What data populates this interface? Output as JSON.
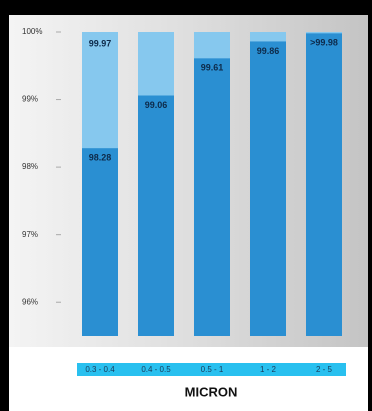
{
  "chart_data": {
    "type": "bar",
    "categories": [
      "0.3 - 0.4",
      "0.4 - 0.5",
      "0.5 - 1",
      "1 - 2",
      "2 - 5"
    ],
    "series": [
      {
        "color": "#2a8fd2",
        "values": [
          98.28,
          99.06,
          99.61,
          99.86,
          99.98
        ],
        "value_labels": [
          "98.28",
          "99.06",
          "99.61",
          "99.86",
          ">99.98"
        ]
      },
      {
        "color": "#86c8ee",
        "values": [
          99.97,
          null,
          null,
          null,
          null
        ]
      }
    ],
    "x_label": "MICRON",
    "ylim": [
      95.5,
      100
    ],
    "yticks": [
      {
        "value": 96,
        "label": "96%"
      },
      {
        "value": 97,
        "label": "97%"
      },
      {
        "value": 98,
        "label": "98%"
      },
      {
        "value": 99,
        "label": "99%"
      },
      {
        "value": 100,
        "label": "100%"
      }
    ]
  }
}
